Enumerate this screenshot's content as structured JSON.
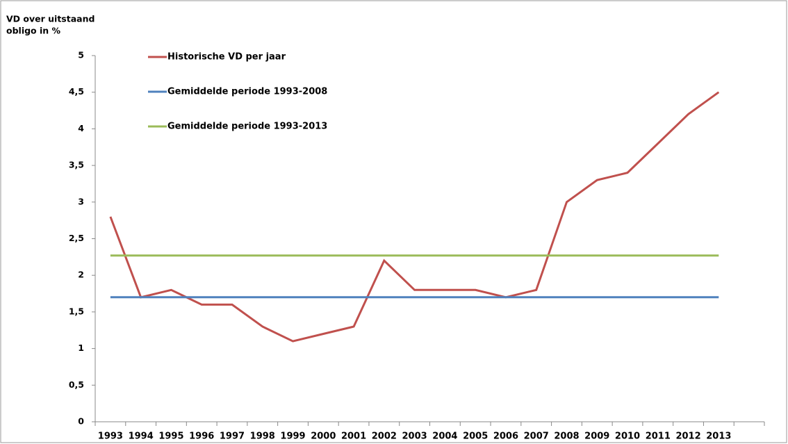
{
  "chart_data": {
    "type": "line",
    "y_label": [
      "VD over uitstaand",
      "obligo in %"
    ],
    "categories": [
      "1993",
      "1994",
      "1995",
      "1996",
      "1997",
      "1998",
      "1999",
      "2000",
      "2001",
      "2002",
      "2003",
      "2004",
      "2005",
      "2006",
      "2007",
      "2008",
      "2009",
      "2010",
      "2011",
      "2012",
      "2013",
      null
    ],
    "series": [
      {
        "name": "Historische VD per jaar",
        "color": "#c0504d",
        "values": [
          2.8,
          1.7,
          1.8,
          1.6,
          1.6,
          1.3,
          1.1,
          1.2,
          1.3,
          2.2,
          1.8,
          1.8,
          1.8,
          1.7,
          1.8,
          3.0,
          3.3,
          3.4,
          3.8,
          4.2,
          4.5,
          null
        ]
      },
      {
        "name": "Gemiddelde periode 1993-2008",
        "color": "#4f81bd",
        "values": [
          1.7,
          1.7,
          1.7,
          1.7,
          1.7,
          1.7,
          1.7,
          1.7,
          1.7,
          1.7,
          1.7,
          1.7,
          1.7,
          1.7,
          1.7,
          1.7,
          1.7,
          1.7,
          1.7,
          1.7,
          1.7,
          null
        ]
      },
      {
        "name": "Gemiddelde periode 1993-2013",
        "color": "#9bbb59",
        "values": [
          2.27,
          2.27,
          2.27,
          2.27,
          2.27,
          2.27,
          2.27,
          2.27,
          2.27,
          2.27,
          2.27,
          2.27,
          2.27,
          2.27,
          2.27,
          2.27,
          2.27,
          2.27,
          2.27,
          2.27,
          2.27,
          null
        ]
      }
    ],
    "ylim": [
      0,
      5
    ],
    "yticks": [
      0,
      {
        "value": 0.5,
        "label": "0,5"
      },
      1,
      {
        "value": 1.5,
        "label": "1,5"
      },
      2,
      {
        "value": 2.5,
        "label": "2,5"
      },
      3,
      {
        "value": 3.5,
        "label": "3,5"
      },
      4,
      {
        "value": 4.5,
        "label": "4,5"
      },
      5
    ],
    "grid": false,
    "legend": "upper left"
  }
}
